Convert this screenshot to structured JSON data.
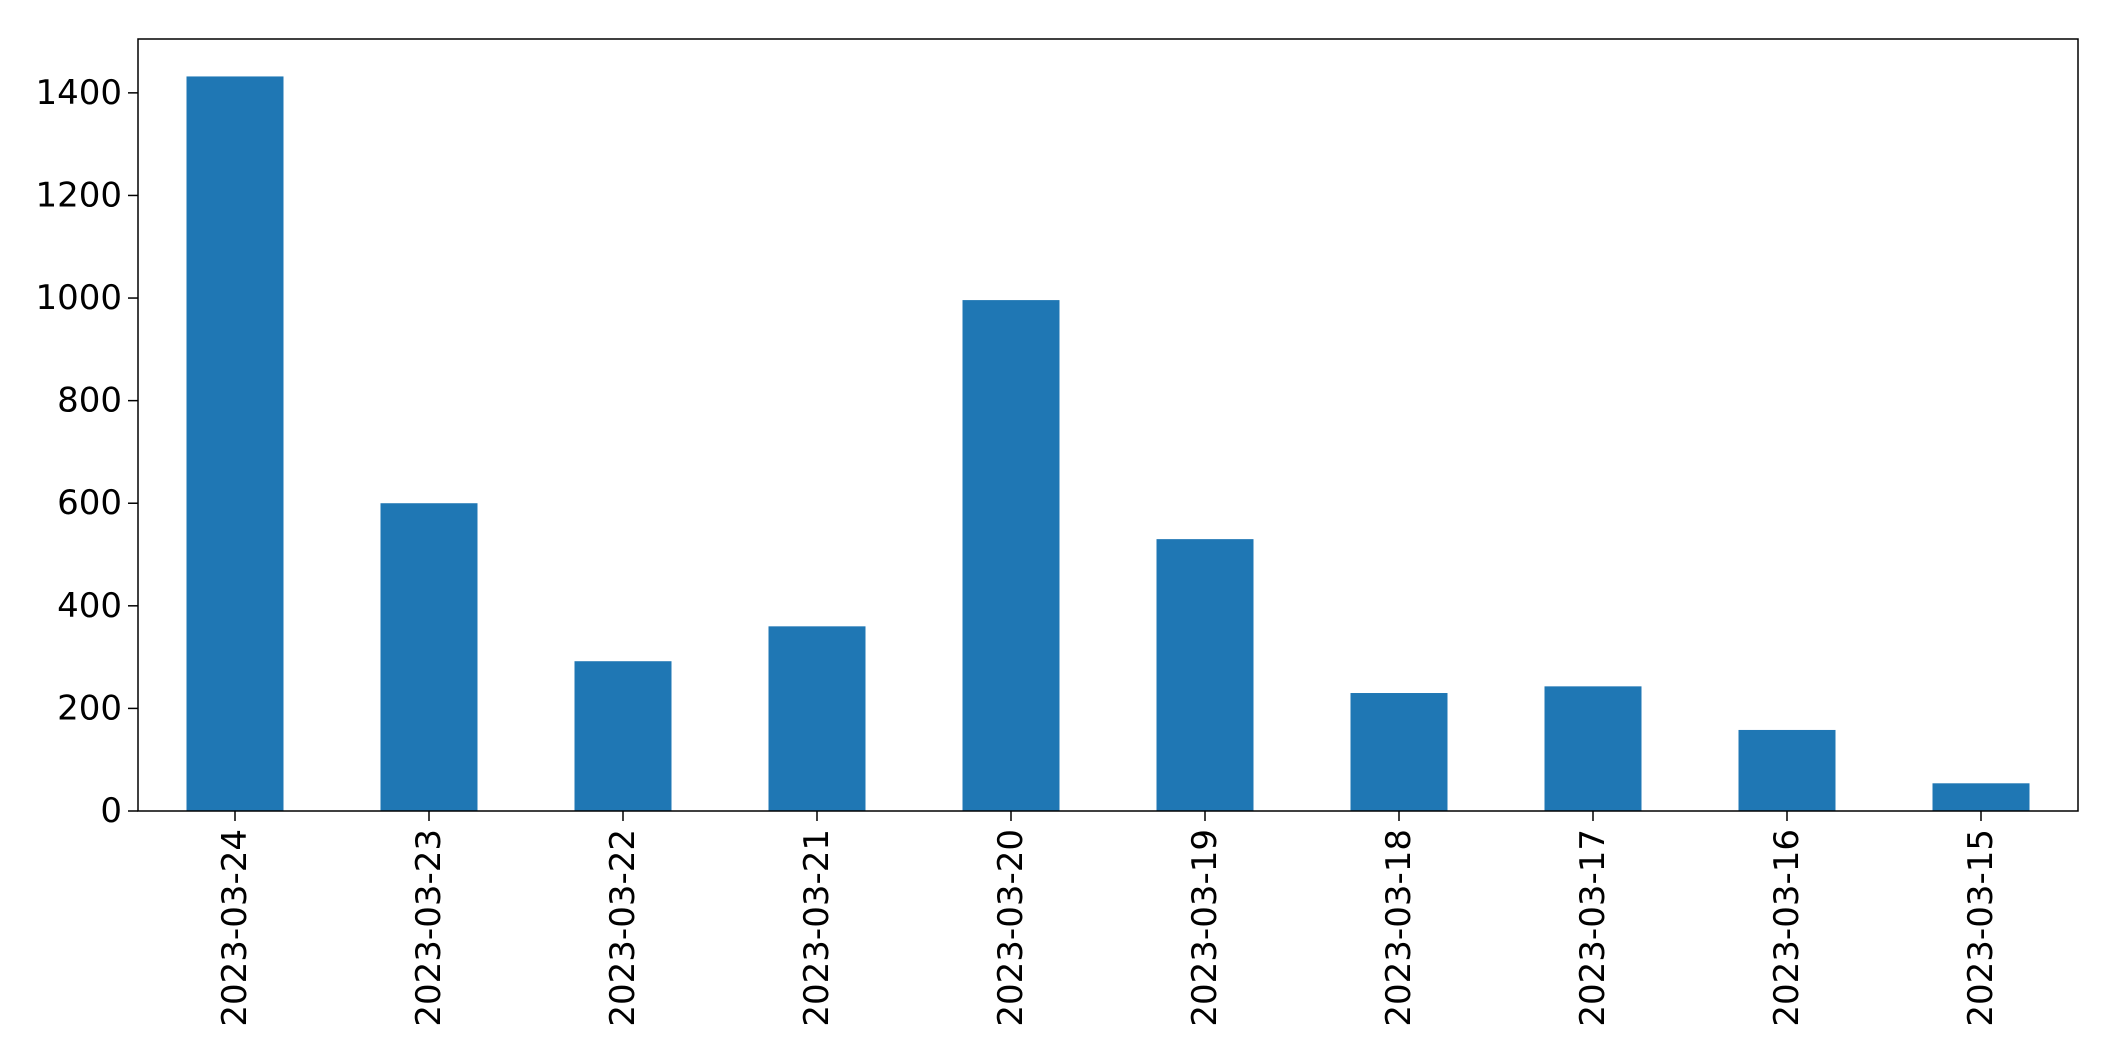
{
  "chart_data": {
    "type": "bar",
    "categories": [
      "2023-03-24",
      "2023-03-23",
      "2023-03-22",
      "2023-03-21",
      "2023-03-20",
      "2023-03-19",
      "2023-03-18",
      "2023-03-17",
      "2023-03-16",
      "2023-03-15"
    ],
    "values": [
      1432,
      600,
      292,
      360,
      996,
      530,
      230,
      243,
      158,
      54
    ],
    "title": "",
    "xlabel": "",
    "ylabel": "",
    "ylim": [
      0,
      1505
    ],
    "yticks": [
      0,
      200,
      400,
      600,
      800,
      1000,
      1200,
      1400
    ],
    "grid": false,
    "legend": "none",
    "colors": {
      "bar": "#1f77b4",
      "axis": "#000000"
    }
  }
}
